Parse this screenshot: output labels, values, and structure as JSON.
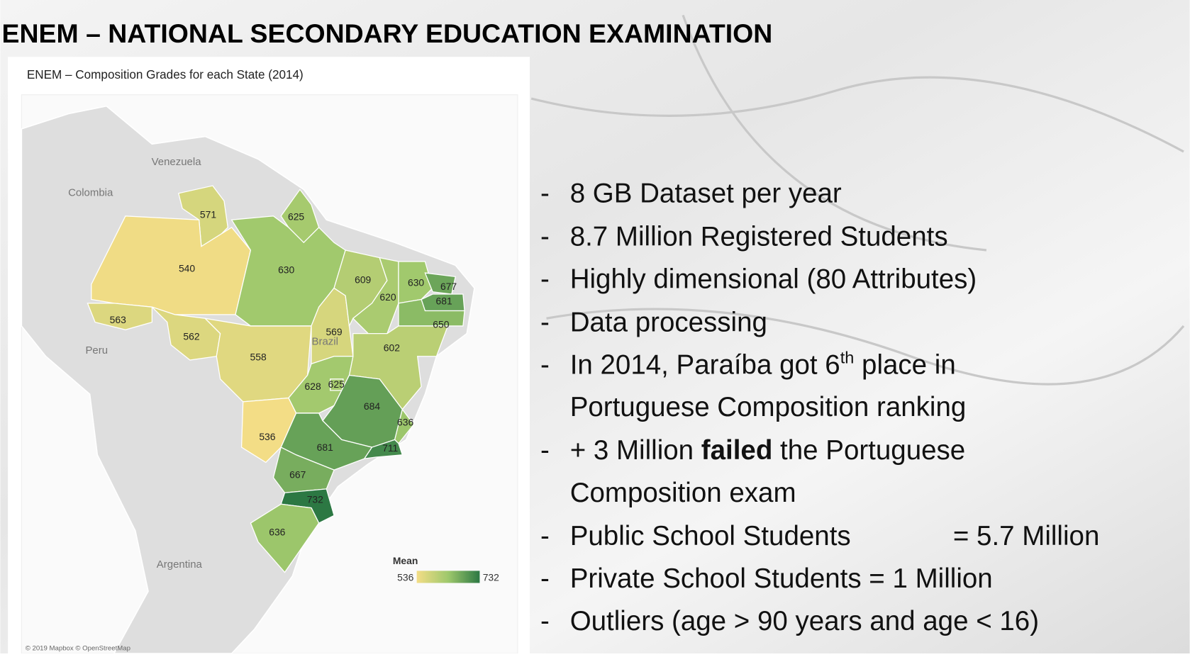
{
  "header": {
    "title": "ENEM – NATIONAL SECONDARY EDUCATION EXAMINATION"
  },
  "map": {
    "title": "ENEM – Composition Grades for each State (2014)",
    "countries": [
      "Venezuela",
      "Colombia",
      "Peru",
      "Argentina",
      "Brazil"
    ],
    "states": [
      571,
      625,
      540,
      630,
      563,
      562,
      558,
      569,
      609,
      620,
      630,
      677,
      681,
      650,
      602,
      628,
      625,
      536,
      684,
      636,
      681,
      711,
      667,
      732,
      636
    ],
    "legend": {
      "title": "Mean",
      "min": 536,
      "max": 732
    },
    "color_scale": [
      "#f3dd86",
      "#9ec86c",
      "#2c7843"
    ],
    "attribution": "© 2019 Mapbox © OpenStreetMap"
  },
  "bullets": {
    "marker": "-",
    "items": [
      [
        "8 GB Dataset per year"
      ],
      [
        "8.7 Million Registered Students"
      ],
      [
        "Highly dimensional (80 Attributes)"
      ],
      [
        "Data processing"
      ],
      [
        "In 2014, Paraíba got 6",
        "th",
        " place in",
        "Portuguese Composition ranking"
      ],
      [
        "+ 3 Million ",
        "failed",
        " the Portuguese",
        "Composition exam"
      ],
      [
        "Public School Students",
        "= 5.7 Million"
      ],
      [
        "Private School Students = 1 Million"
      ],
      [
        "Outliers (age > 90 years and age < 16)"
      ]
    ]
  }
}
